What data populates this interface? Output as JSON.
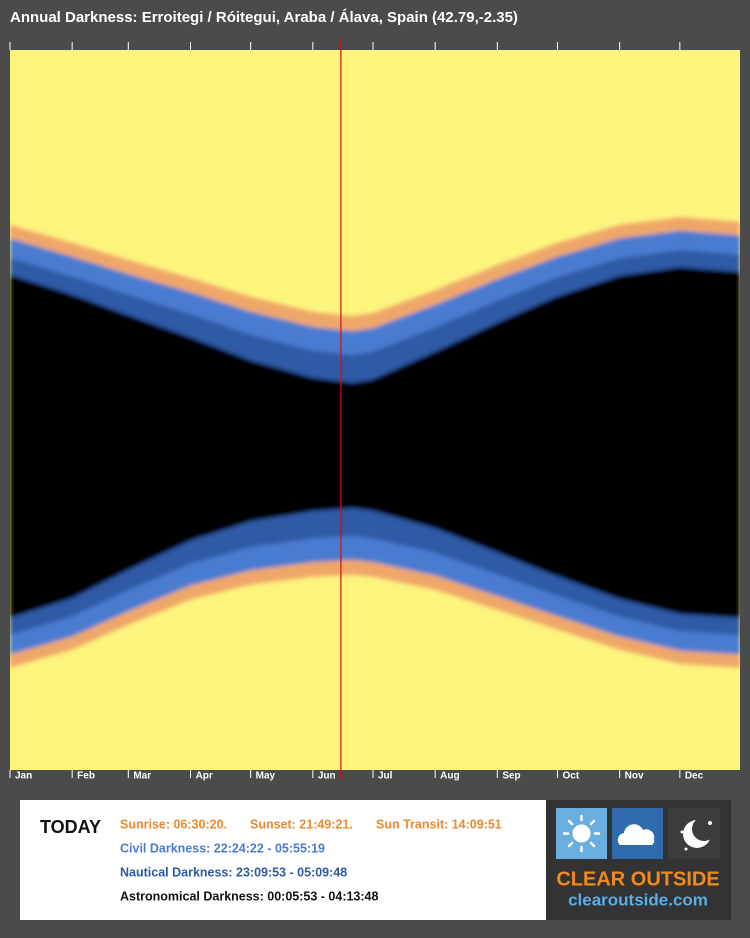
{
  "header": {
    "title": "Annual Darkness: Erroitegi / Róitegui, Araba / Álava, Spain (42.79,-2.35)"
  },
  "chart_data": {
    "type": "darkness-bands",
    "x": [
      1,
      32,
      60,
      91,
      121,
      152,
      172,
      182,
      213,
      244,
      274,
      305,
      335,
      365
    ],
    "xlim": [
      1,
      365
    ],
    "xticks": [
      {
        "value": 1,
        "label": "Jan"
      },
      {
        "value": 32,
        "label": "Feb"
      },
      {
        "value": 60,
        "label": "Mar"
      },
      {
        "value": 91,
        "label": "Apr"
      },
      {
        "value": 121,
        "label": "May"
      },
      {
        "value": 152,
        "label": "Jun"
      },
      {
        "value": 182,
        "label": "Jul"
      },
      {
        "value": 213,
        "label": "Aug"
      },
      {
        "value": 244,
        "label": "Sep"
      },
      {
        "value": 274,
        "label": "Oct"
      },
      {
        "value": 305,
        "label": "Nov"
      },
      {
        "value": 335,
        "label": "Dec"
      }
    ],
    "ylim": [
      12,
      36
    ],
    "background": "#fdf47e",
    "marker_x": 166,
    "marker_color": "#d01010",
    "series": [
      {
        "color": "#efa769",
        "values": [
          17.83,
          18.43,
          19.0,
          19.6,
          20.23,
          20.73,
          20.87,
          20.77,
          20.0,
          19.17,
          18.43,
          17.83,
          17.57,
          17.73
        ]
      },
      {
        "color": "#4a7bd0",
        "values": [
          18.28,
          18.89,
          19.47,
          20.08,
          20.72,
          21.23,
          21.37,
          21.27,
          20.49,
          19.64,
          18.89,
          18.28,
          18.02,
          18.18
        ]
      },
      {
        "color": "#2d5aa6",
        "values": [
          18.93,
          19.55,
          20.16,
          20.81,
          21.49,
          22.02,
          22.17,
          22.06,
          21.24,
          20.36,
          19.57,
          18.94,
          18.67,
          18.83
        ]
      },
      {
        "color": "#000000",
        "values": [
          19.5,
          20.16,
          20.84,
          21.58,
          22.35,
          22.93,
          23.1,
          22.98,
          22.06,
          21.09,
          20.21,
          19.53,
          19.24,
          19.4
        ]
      },
      {
        "color": "#2d5aa6",
        "values": [
          30.93,
          30.27,
          29.33,
          28.35,
          27.71,
          27.37,
          27.27,
          27.36,
          27.94,
          28.75,
          29.55,
          30.3,
          30.8,
          30.93
        ]
      },
      {
        "color": "#4a7bd0",
        "values": [
          31.5,
          30.88,
          30.01,
          29.12,
          28.57,
          28.28,
          28.2,
          28.28,
          28.76,
          29.48,
          30.19,
          30.89,
          31.37,
          31.5
        ]
      },
      {
        "color": "#efa769",
        "values": [
          32.15,
          31.55,
          30.71,
          29.85,
          29.34,
          29.07,
          29.0,
          29.07,
          29.52,
          30.2,
          30.87,
          31.55,
          32.02,
          32.15
        ]
      },
      {
        "color": "#fdf47e",
        "values": [
          32.6,
          32.0,
          31.17,
          30.33,
          29.83,
          29.57,
          29.5,
          29.57,
          30.0,
          30.67,
          31.33,
          32.0,
          32.47,
          32.6
        ]
      }
    ]
  },
  "today": {
    "label": "TODAY",
    "sunrise": "Sunrise: 06:30:20.",
    "sunset": "Sunset: 21:49:21.",
    "transit": "Sun Transit: 14:09:51",
    "civil": "Civil Darkness: 22:24:22 - 05:55:19",
    "nautical": "Nautical Darkness: 23:09:53 - 05:09:48",
    "astronomical": "Astronomical Darkness: 00:05:53 - 04:13:48"
  },
  "logo": {
    "name": "CLEAR OUTSIDE",
    "url": "clearoutside.com"
  }
}
